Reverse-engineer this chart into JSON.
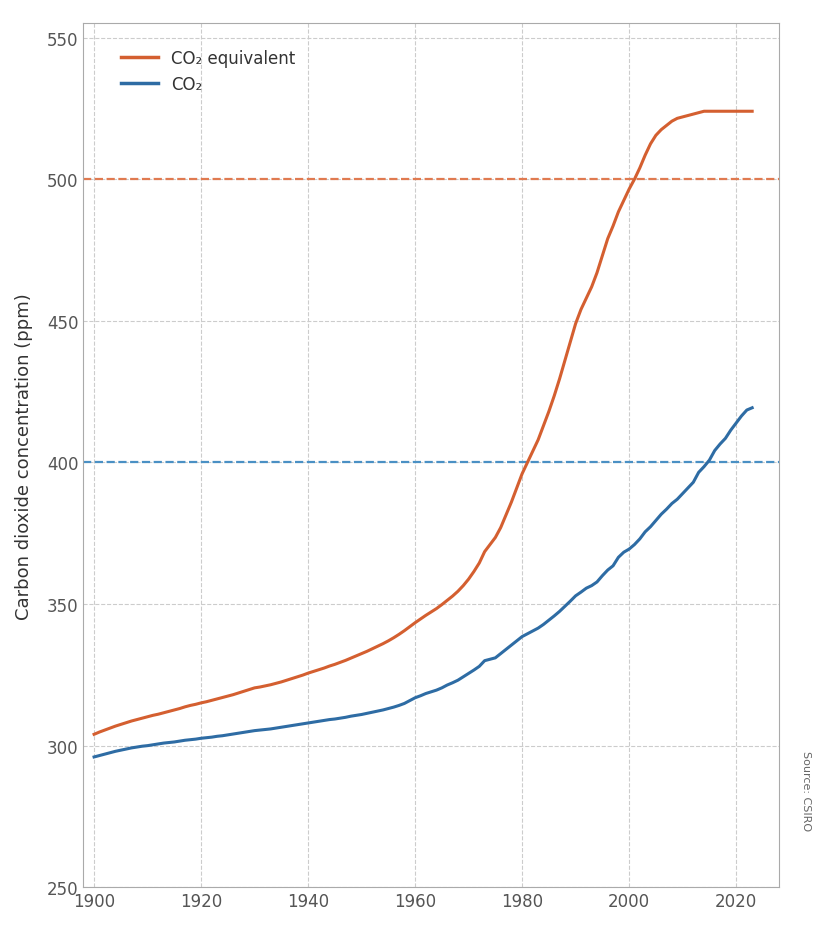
{
  "years": [
    1900,
    1901,
    1902,
    1903,
    1904,
    1905,
    1906,
    1907,
    1908,
    1909,
    1910,
    1911,
    1912,
    1913,
    1914,
    1915,
    1916,
    1917,
    1918,
    1919,
    1920,
    1921,
    1922,
    1923,
    1924,
    1925,
    1926,
    1927,
    1928,
    1929,
    1930,
    1931,
    1932,
    1933,
    1934,
    1935,
    1936,
    1937,
    1938,
    1939,
    1940,
    1941,
    1942,
    1943,
    1944,
    1945,
    1946,
    1947,
    1948,
    1949,
    1950,
    1951,
    1952,
    1953,
    1954,
    1955,
    1956,
    1957,
    1958,
    1959,
    1960,
    1961,
    1962,
    1963,
    1964,
    1965,
    1966,
    1967,
    1968,
    1969,
    1970,
    1971,
    1972,
    1973,
    1974,
    1975,
    1976,
    1977,
    1978,
    1979,
    1980,
    1981,
    1982,
    1983,
    1984,
    1985,
    1986,
    1987,
    1988,
    1989,
    1990,
    1991,
    1992,
    1993,
    1994,
    1995,
    1996,
    1997,
    1998,
    1999,
    2000,
    2001,
    2002,
    2003,
    2004,
    2005,
    2006,
    2007,
    2008,
    2009,
    2010,
    2011,
    2012,
    2013,
    2014,
    2015,
    2016,
    2017,
    2018,
    2019,
    2020,
    2021,
    2022,
    2023
  ],
  "co2": [
    296.0,
    296.5,
    297.0,
    297.5,
    298.0,
    298.4,
    298.8,
    299.2,
    299.5,
    299.8,
    300.0,
    300.3,
    300.6,
    300.9,
    301.1,
    301.3,
    301.6,
    301.9,
    302.1,
    302.3,
    302.6,
    302.8,
    303.0,
    303.3,
    303.5,
    303.8,
    304.1,
    304.4,
    304.7,
    305.0,
    305.3,
    305.5,
    305.7,
    305.9,
    306.2,
    306.5,
    306.8,
    307.1,
    307.4,
    307.7,
    308.0,
    308.3,
    308.6,
    308.9,
    309.2,
    309.4,
    309.7,
    310.0,
    310.4,
    310.7,
    311.0,
    311.4,
    311.8,
    312.2,
    312.6,
    313.1,
    313.6,
    314.2,
    314.9,
    315.9,
    316.9,
    317.6,
    318.4,
    319.0,
    319.6,
    320.4,
    321.4,
    322.2,
    323.1,
    324.3,
    325.5,
    326.7,
    328.0,
    330.0,
    330.5,
    331.0,
    332.5,
    334.0,
    335.5,
    337.0,
    338.5,
    339.5,
    340.5,
    341.5,
    342.8,
    344.3,
    345.8,
    347.4,
    349.2,
    351.0,
    352.9,
    354.2,
    355.6,
    356.5,
    357.8,
    360.0,
    362.0,
    363.5,
    366.5,
    368.3,
    369.4,
    371.0,
    373.0,
    375.5,
    377.3,
    379.5,
    381.7,
    383.5,
    385.5,
    387.0,
    389.0,
    391.0,
    393.0,
    396.5,
    398.5,
    400.8,
    404.2,
    406.5,
    408.5,
    411.4,
    413.9,
    416.4,
    418.5,
    419.3
  ],
  "co2eq": [
    304.0,
    304.8,
    305.5,
    306.2,
    306.9,
    307.5,
    308.1,
    308.7,
    309.2,
    309.7,
    310.2,
    310.7,
    311.1,
    311.6,
    312.1,
    312.6,
    313.1,
    313.7,
    314.2,
    314.6,
    315.1,
    315.5,
    316.0,
    316.5,
    317.0,
    317.5,
    318.0,
    318.6,
    319.2,
    319.8,
    320.4,
    320.7,
    321.1,
    321.5,
    322.0,
    322.5,
    323.1,
    323.7,
    324.3,
    324.9,
    325.6,
    326.2,
    326.8,
    327.4,
    328.1,
    328.7,
    329.4,
    330.1,
    330.9,
    331.7,
    332.5,
    333.3,
    334.2,
    335.1,
    336.0,
    337.0,
    338.1,
    339.3,
    340.6,
    342.0,
    343.4,
    344.7,
    346.0,
    347.2,
    348.4,
    349.8,
    351.3,
    352.8,
    354.5,
    356.5,
    358.8,
    361.5,
    364.5,
    368.5,
    371.0,
    373.5,
    377.0,
    381.5,
    386.0,
    391.0,
    396.0,
    400.0,
    404.0,
    408.0,
    413.0,
    418.0,
    423.5,
    429.5,
    436.0,
    442.5,
    449.0,
    454.0,
    458.0,
    462.0,
    467.0,
    473.0,
    479.0,
    483.5,
    488.5,
    492.5,
    496.5,
    500.0,
    504.0,
    508.5,
    512.5,
    515.5,
    517.5,
    519.0,
    520.5,
    521.5,
    522.0,
    522.5,
    523.0,
    523.5,
    524.0,
    524.0,
    524.0,
    524.0,
    524.0,
    524.0,
    524.0,
    524.0,
    524.0,
    524.0
  ],
  "co2_color": "#2e6ca4",
  "co2eq_color": "#d45f30",
  "hline_co2_y": 400,
  "hline_co2eq_y": 500,
  "hline_co2_color": "#4a90c4",
  "hline_co2eq_color": "#e07a50",
  "ylabel": "Carbon dioxide concentration (ppm)",
  "ylim": [
    250,
    555
  ],
  "xlim": [
    1898,
    2028
  ],
  "yticks": [
    250,
    300,
    350,
    400,
    450,
    500,
    550
  ],
  "xticks": [
    1900,
    1920,
    1940,
    1960,
    1980,
    2000,
    2020
  ],
  "legend_co2eq": "CO₂ equivalent",
  "legend_co2": "CO₂",
  "source_text": "Source: CSIRO",
  "grid_color": "#cccccc",
  "background_color": "#ffffff",
  "axis_fontsize": 13,
  "tick_fontsize": 12,
  "tick_color": "#555555",
  "label_color": "#333333",
  "spine_color": "#aaaaaa"
}
